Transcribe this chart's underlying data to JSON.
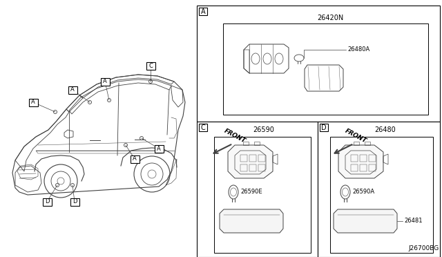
{
  "background_color": "#ffffff",
  "diagram_code": "J26700BG",
  "part_26420N": "26420N",
  "part_26480A": "26480A",
  "part_26590": "26590",
  "part_26590E": "26590E",
  "part_26480": "26480",
  "part_26590A": "26590A",
  "part_26481": "26481",
  "label_A": "A",
  "label_C": "C",
  "label_D": "D",
  "front_text": "FRONT",
  "line_color": "#404040",
  "border_color": "#000000",
  "text_color": "#000000"
}
